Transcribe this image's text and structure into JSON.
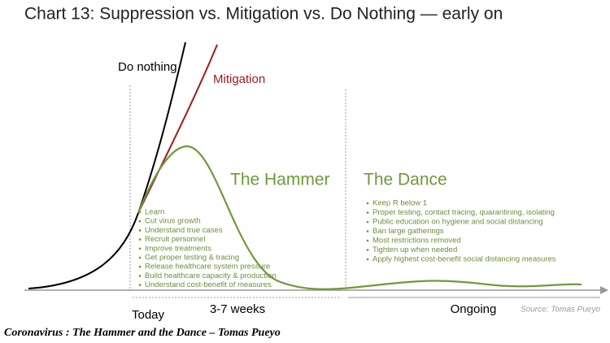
{
  "header": {
    "title": "Chart 13: Suppression vs. Mitigation vs. Do Nothing — early on"
  },
  "curves": {
    "do_nothing": "Do nothing",
    "mitigation": "Mitigation"
  },
  "phases": {
    "hammer": {
      "title": "The Hammer",
      "items": [
        "Learn",
        "Cut virus growth",
        "Understand true cases",
        "Recruit personnel",
        "Improve treatments",
        "Get proper testing & tracing",
        "Release healthcare system pressure",
        "Build healthcare capacity & production",
        "Understand cost-benefit of measures"
      ]
    },
    "dance": {
      "title": "The Dance",
      "items": [
        "Keep R below 1",
        "Proper testing, contact tracing, quarantining, isolating",
        "Public education on hygiene and social distancing",
        "Ban large gatherings",
        "Most restrictions removed",
        "Tighten up when needed",
        "Apply highest cost-benefit social distancing measures"
      ]
    }
  },
  "timeline": {
    "today": "Today",
    "weeks": "3-7 weeks",
    "ongoing": "Ongoing"
  },
  "source": "Source: Tomas Pueyo",
  "caption": "Coronavirus : The Hammer and the Dance – Tomas Pueyo"
}
